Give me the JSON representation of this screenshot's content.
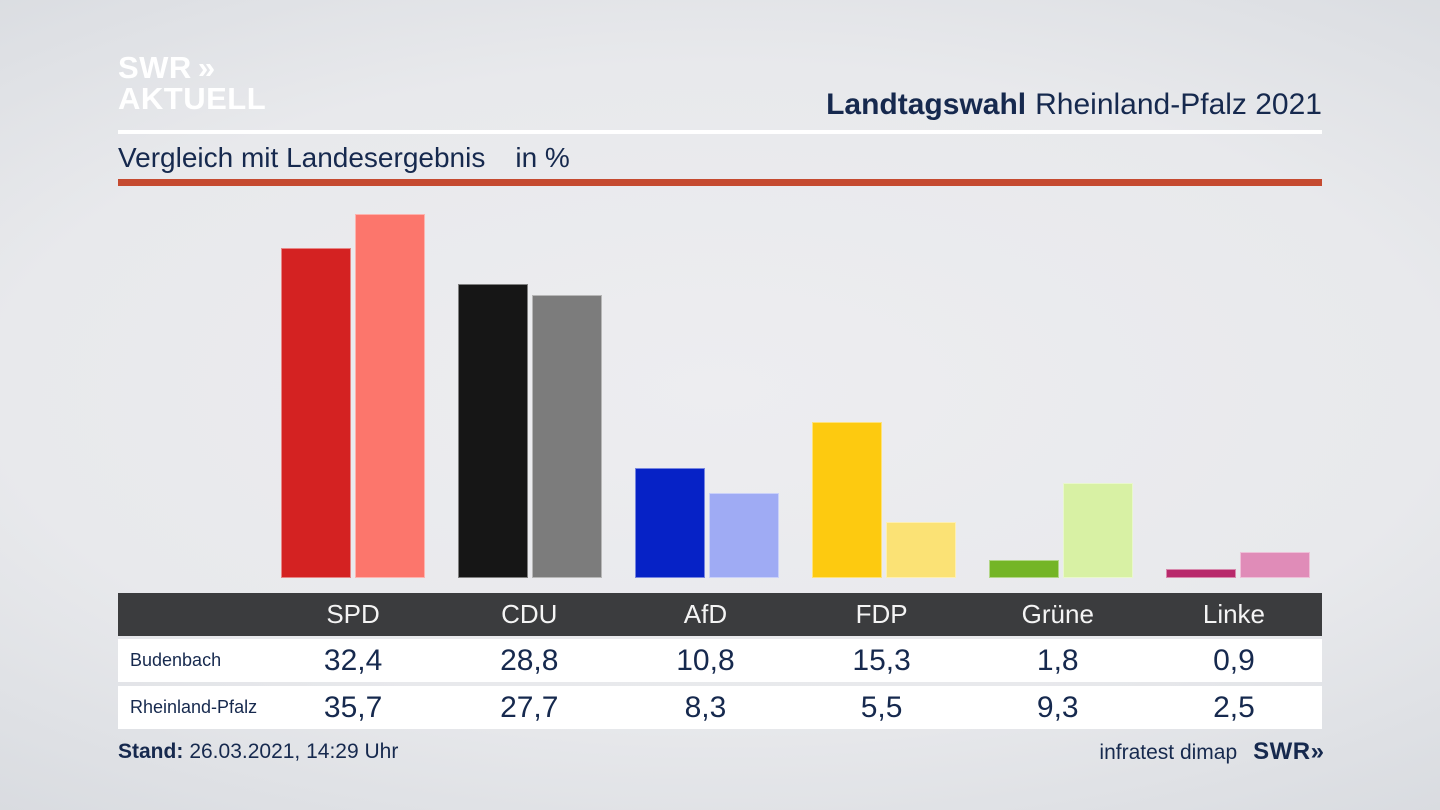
{
  "brand": {
    "line1": "SWR",
    "line2": "AKTUELL",
    "chevrons": "»"
  },
  "header": {
    "title_bold": "Landtagswahl",
    "title_rest": "Rheinland-Pfalz 2021"
  },
  "subtitle": {
    "text": "Vergleich mit Landesergebnis",
    "unit": "in %"
  },
  "colors": {
    "accent_red_rule": "#c54a30",
    "text_navy": "#16294e",
    "table_header_bg": "#3b3c3e"
  },
  "chart_data": {
    "type": "bar",
    "title": "Vergleich mit Landesergebnis in %",
    "categories": [
      "SPD",
      "CDU",
      "AfD",
      "FDP",
      "Grüne",
      "Linke"
    ],
    "series": [
      {
        "name": "Budenbach",
        "values": [
          32.4,
          28.8,
          10.8,
          15.3,
          1.8,
          0.9
        ],
        "colors": [
          "#d42222",
          "#161616",
          "#0622c6",
          "#fdca10",
          "#74b526",
          "#b8296b"
        ]
      },
      {
        "name": "Rheinland-Pfalz",
        "values": [
          35.7,
          27.7,
          8.3,
          5.5,
          9.3,
          2.5
        ],
        "colors": [
          "#fc766c",
          "#7c7c7c",
          "#9fabf4",
          "#fbe275",
          "#d8f1a4",
          "#e08cb8"
        ]
      }
    ],
    "xlabel": "",
    "ylabel": "in %",
    "ylim": [
      0,
      38
    ],
    "grid": false,
    "legend": "none (series named in table rows)"
  },
  "table": {
    "header": [
      "SPD",
      "CDU",
      "AfD",
      "FDP",
      "Grüne",
      "Linke"
    ],
    "rows": [
      {
        "label": "Budenbach",
        "values": [
          "32,4",
          "28,8",
          "10,8",
          "15,3",
          "1,8",
          "0,9"
        ]
      },
      {
        "label": "Rheinland-Pfalz",
        "values": [
          "35,7",
          "27,7",
          "8,3",
          "5,5",
          "9,3",
          "2,5"
        ]
      }
    ]
  },
  "footer": {
    "stand_label": "Stand:",
    "stand_value": "26.03.2021, 14:29 Uhr",
    "source": "infratest dimap",
    "swr_logo": "SWR",
    "chevrons": "»"
  }
}
